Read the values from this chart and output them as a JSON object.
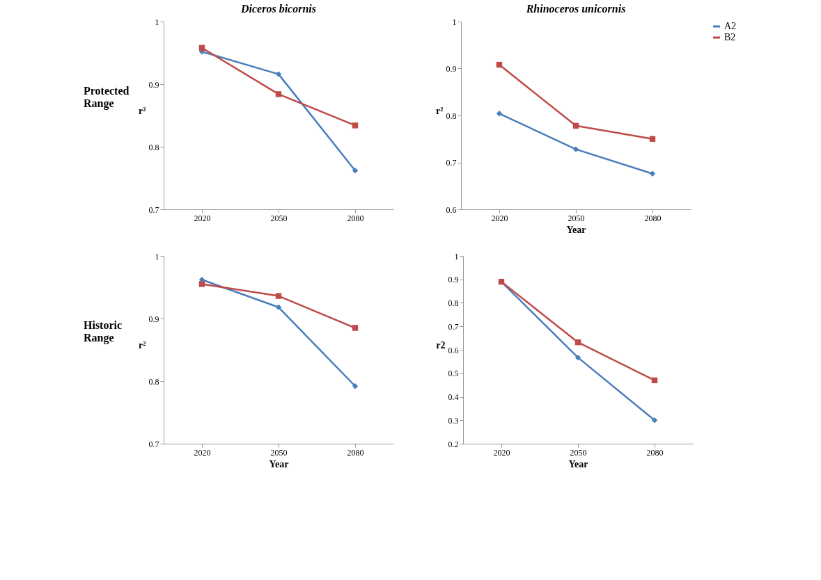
{
  "chart_data": [
    {
      "type": "line",
      "title": "Diceros bicornis",
      "ylabel": "r²",
      "annotations": [
        "Protected Range"
      ],
      "categories": [
        "2020",
        "2050",
        "2080"
      ],
      "ylim": [
        0.7,
        1
      ],
      "yticks": [
        0.7,
        0.8,
        0.9,
        1
      ],
      "grid": false,
      "legend": false,
      "line_style": "solid",
      "series": [
        {
          "color": "#4a7ebb",
          "marker": "diamond",
          "values": [
            0.952,
            0.916,
            0.762
          ]
        },
        {
          "color": "#be4b48",
          "marker": "square",
          "values": [
            0.958,
            0.884,
            0.834
          ]
        }
      ]
    },
    {
      "type": "line",
      "title": "Rhinoceros unicornis",
      "ylabel": "r²",
      "xlabel": "Year",
      "categories": [
        "2020",
        "2050",
        "2080"
      ],
      "ylim": [
        0.6,
        1
      ],
      "yticks": [
        0.6,
        0.7,
        0.8,
        0.9,
        1
      ],
      "grid": false,
      "legend": "right",
      "line_style": "solid",
      "series": [
        {
          "name": "A2",
          "color": "#4a7ebb",
          "marker": "diamond",
          "values": [
            0.804,
            0.728,
            0.676
          ]
        },
        {
          "name": "B2",
          "color": "#be4b48",
          "marker": "square",
          "values": [
            0.908,
            0.778,
            0.75
          ]
        }
      ]
    },
    {
      "type": "line",
      "ylabel": "r²",
      "xlabel": "Year",
      "annotations": [
        "Historic Range"
      ],
      "categories": [
        "2020",
        "2050",
        "2080"
      ],
      "ylim": [
        0.7,
        1
      ],
      "yticks": [
        0.7,
        0.8,
        0.9,
        1
      ],
      "grid": false,
      "legend": false,
      "line_style": "solid",
      "series": [
        {
          "color": "#4a7ebb",
          "marker": "diamond",
          "values": [
            0.962,
            0.918,
            0.792
          ]
        },
        {
          "color": "#be4b48",
          "marker": "square",
          "values": [
            0.955,
            0.936,
            0.885
          ]
        }
      ]
    },
    {
      "type": "line",
      "ylabel": "r2",
      "xlabel": "Year",
      "categories": [
        "2020",
        "2050",
        "2080"
      ],
      "ylim": [
        0.2,
        1
      ],
      "yticks": [
        0.2,
        0.3,
        0.4,
        0.5,
        0.6,
        0.7,
        0.8,
        0.9,
        1
      ],
      "grid": false,
      "legend": false,
      "line_style": "solid",
      "series": [
        {
          "color": "#4a7ebb",
          "marker": "diamond",
          "values": [
            0.89,
            0.567,
            0.3
          ]
        },
        {
          "color": "#be4b48",
          "marker": "square",
          "values": [
            0.89,
            0.632,
            0.47
          ]
        }
      ]
    }
  ]
}
